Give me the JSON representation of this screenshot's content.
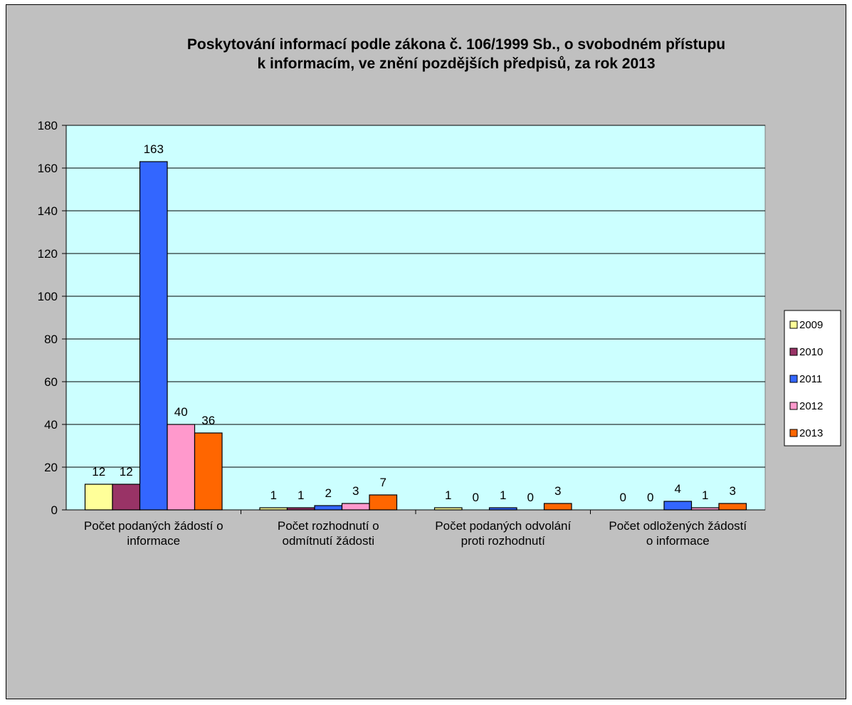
{
  "chart_data": {
    "type": "bar",
    "title_lines": [
      "Poskytování informací podle zákona č. 106/1999 Sb., o svobodném přístupu",
      "k informacím, ve znění pozdějších předpisů, za rok 2013"
    ],
    "xlabel": "",
    "ylabel": "",
    "ylim": [
      0,
      180
    ],
    "yticks": [
      0,
      20,
      40,
      60,
      80,
      100,
      120,
      140,
      160,
      180
    ],
    "grid": true,
    "legend_position": "right",
    "plot_background": "#ccffff",
    "chart_background": "#c0c0c0",
    "categories": [
      [
        "Počet podaných žádostí o",
        "informace"
      ],
      [
        "Počet rozhodnutí o",
        "odmítnutí žádosti"
      ],
      [
        "Počet podaných odvolání",
        "proti rozhodnutí"
      ],
      [
        "Počet odložených žádostí",
        "o informace"
      ]
    ],
    "series": [
      {
        "name": "2009",
        "color": "#ffff99",
        "values": [
          12,
          1,
          1,
          0
        ]
      },
      {
        "name": "2010",
        "color": "#993366",
        "values": [
          12,
          1,
          0,
          0
        ]
      },
      {
        "name": "2011",
        "color": "#3366ff",
        "values": [
          163,
          2,
          1,
          4
        ]
      },
      {
        "name": "2012",
        "color": "#ff99cc",
        "values": [
          40,
          3,
          0,
          1
        ]
      },
      {
        "name": "2013",
        "color": "#ff6600",
        "values": [
          36,
          7,
          3,
          3
        ]
      }
    ]
  }
}
